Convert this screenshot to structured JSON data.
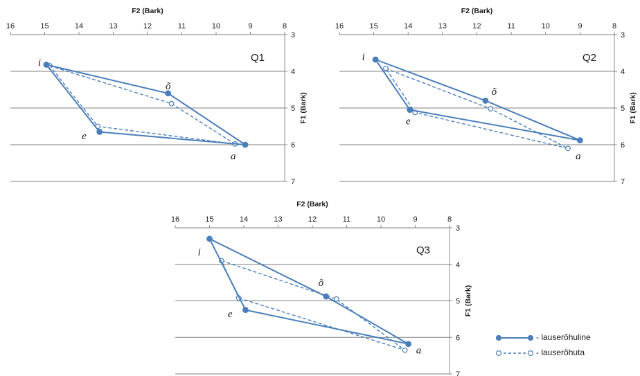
{
  "chart_data": [
    {
      "type": "line",
      "title": "",
      "panel_label": "Q1",
      "xlabel": "F2 (Bark)",
      "ylabel": "F1 (Bark)",
      "xlim": [
        16,
        8
      ],
      "ylim": [
        3,
        7
      ],
      "x_reversed": true,
      "y_reversed": true,
      "x_ticks": [
        16,
        15,
        14,
        13,
        12,
        11,
        10,
        9,
        8
      ],
      "y_ticks": [
        3,
        4,
        5,
        6,
        7
      ],
      "grid": "horizontal",
      "vowel_labels": [
        {
          "text": "i",
          "x": 15.15,
          "y": 3.75
        },
        {
          "text": "õ",
          "x": 11.4,
          "y": 4.4
        },
        {
          "text": "e",
          "x": 13.85,
          "y": 5.75
        },
        {
          "text": "a",
          "x": 9.5,
          "y": 6.3
        }
      ],
      "series": [
        {
          "name": "- lauserõhuline",
          "style": "solid",
          "marker": "filled",
          "points": [
            [
              14.95,
              3.82
            ],
            [
              11.4,
              4.6
            ],
            [
              9.15,
              6.0
            ],
            [
              13.4,
              5.65
            ],
            [
              14.95,
              3.82
            ]
          ]
        },
        {
          "name": "- lauserõhuta",
          "style": "dashed",
          "marker": "hollow",
          "points": [
            [
              14.85,
              3.85
            ],
            [
              11.3,
              4.88
            ],
            [
              9.45,
              5.98
            ],
            [
              13.45,
              5.5
            ],
            [
              14.85,
              3.85
            ]
          ]
        }
      ]
    },
    {
      "type": "line",
      "title": "",
      "panel_label": "Q2",
      "xlabel": "F2 (Bark)",
      "ylabel": "F1 (Bark)",
      "xlim": [
        16,
        8
      ],
      "ylim": [
        3,
        7
      ],
      "x_reversed": true,
      "y_reversed": true,
      "x_ticks": [
        16,
        15,
        14,
        13,
        12,
        11,
        10,
        9,
        8
      ],
      "y_ticks": [
        3,
        4,
        5,
        6,
        7
      ],
      "grid": "horizontal",
      "vowel_labels": [
        {
          "text": "i",
          "x": 15.3,
          "y": 3.6
        },
        {
          "text": "õ",
          "x": 11.5,
          "y": 4.55
        },
        {
          "text": "e",
          "x": 14.0,
          "y": 5.35
        },
        {
          "text": "a",
          "x": 9.05,
          "y": 6.3
        }
      ],
      "series": [
        {
          "name": "- lauserõhuline",
          "style": "solid",
          "marker": "filled",
          "points": [
            [
              14.95,
              3.68
            ],
            [
              11.75,
              4.8
            ],
            [
              9.0,
              5.88
            ],
            [
              13.95,
              5.05
            ],
            [
              14.95,
              3.68
            ]
          ]
        },
        {
          "name": "- lauserõhuta",
          "style": "dashed",
          "marker": "hollow",
          "points": [
            [
              14.65,
              3.92
            ],
            [
              11.6,
              5.02
            ],
            [
              9.35,
              6.1
            ],
            [
              13.8,
              5.12
            ],
            [
              14.65,
              3.92
            ]
          ]
        }
      ]
    },
    {
      "type": "line",
      "title": "",
      "panel_label": "Q3",
      "xlabel": "F2 (Bark)",
      "ylabel": "F1 (Bark)",
      "xlim": [
        16,
        8
      ],
      "ylim": [
        3,
        7
      ],
      "x_reversed": true,
      "y_reversed": true,
      "x_ticks": [
        16,
        15,
        14,
        13,
        12,
        11,
        10,
        9,
        8
      ],
      "y_ticks": [
        3,
        4,
        5,
        6,
        7
      ],
      "grid": "horizontal",
      "vowel_labels": [
        {
          "text": "i",
          "x": 15.3,
          "y": 3.65
        },
        {
          "text": "õ",
          "x": 11.75,
          "y": 4.5
        },
        {
          "text": "e",
          "x": 14.4,
          "y": 5.35
        },
        {
          "text": "a",
          "x": 8.9,
          "y": 6.35
        }
      ],
      "series": [
        {
          "name": "- lauserõhuline",
          "style": "solid",
          "marker": "filled",
          "points": [
            [
              15.0,
              3.3
            ],
            [
              11.6,
              4.88
            ],
            [
              9.2,
              6.18
            ],
            [
              13.95,
              5.25
            ],
            [
              15.0,
              3.3
            ]
          ]
        },
        {
          "name": "- lauserõhuta",
          "style": "dashed",
          "marker": "hollow",
          "points": [
            [
              14.65,
              3.9
            ],
            [
              11.3,
              4.95
            ],
            [
              9.3,
              6.35
            ],
            [
              14.15,
              4.92
            ],
            [
              14.65,
              3.9
            ]
          ]
        }
      ]
    }
  ],
  "legend": {
    "placement": "bottom-right",
    "items": [
      {
        "label": "- lauserõhuline",
        "style": "solid",
        "marker": "filled"
      },
      {
        "label": "- lauserõhuta",
        "style": "dashed",
        "marker": "hollow"
      }
    ]
  },
  "colors": {
    "series": "#4a7ebb",
    "grid": "#7f7f7f",
    "text": "#1a1a1a",
    "background": "#ffffff"
  }
}
